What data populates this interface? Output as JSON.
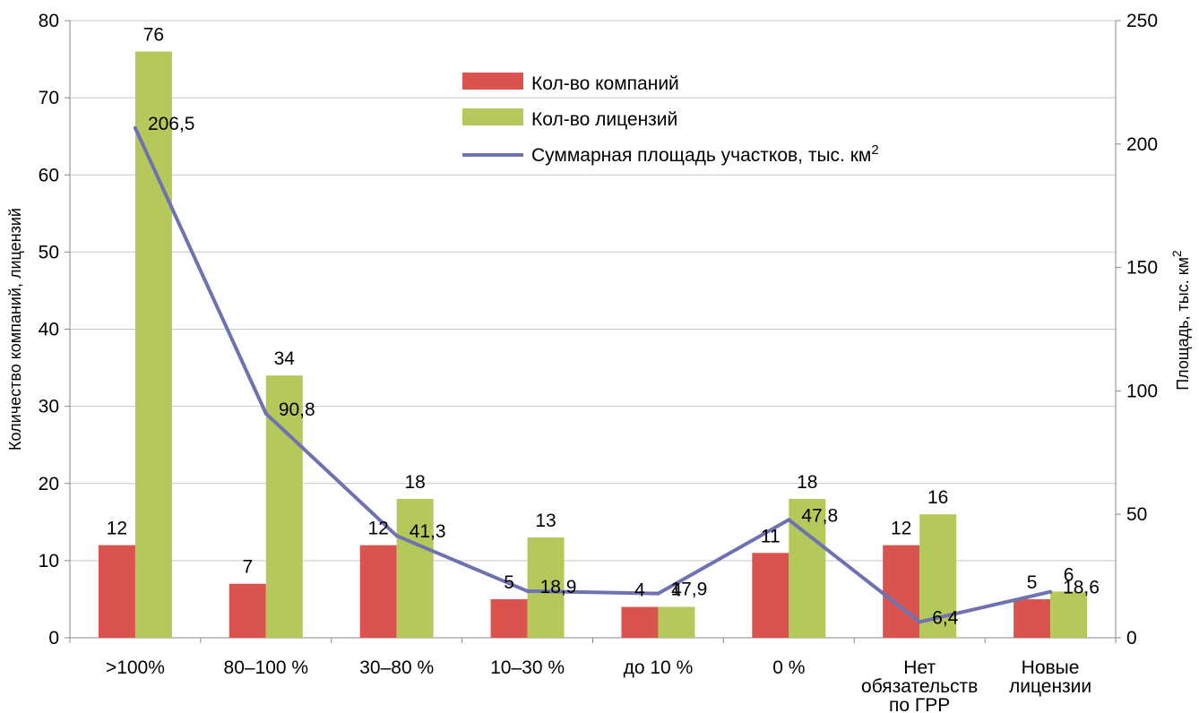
{
  "chart_data": {
    "type": "bar",
    "categories": [
      [
        ">100%"
      ],
      [
        "80–100 %"
      ],
      [
        "30–80 %"
      ],
      [
        "10–30 %"
      ],
      [
        "до 10 %"
      ],
      [
        "0 %"
      ],
      [
        "Нет",
        "обязательств",
        "по ГРР"
      ],
      [
        "Новые",
        "лицензии"
      ]
    ],
    "series": [
      {
        "name": "Кол-во компаний",
        "type": "bar",
        "axis": "left",
        "color": "#d9534f",
        "values": [
          12,
          7,
          12,
          5,
          4,
          11,
          12,
          5
        ]
      },
      {
        "name": "Кол-во лицензий",
        "type": "bar",
        "axis": "left",
        "color": "#b5c95a",
        "values": [
          76,
          34,
          18,
          13,
          4,
          18,
          16,
          6
        ]
      },
      {
        "name": "Суммарная площадь участков, тыс. км",
        "name_sup": "2",
        "type": "line",
        "axis": "right",
        "color": "#6e72b0",
        "values": [
          206.5,
          90.8,
          41.3,
          18.9,
          17.9,
          47.8,
          6.4,
          18.6
        ],
        "labels": [
          "206,5",
          "90,8",
          "41,3",
          "18,9",
          "17,9",
          "47,8",
          "6,4",
          "18,6"
        ]
      }
    ],
    "ylabel_left": "Количество компаний, лицензий",
    "ylabel_right": "Площадь, тыс. км",
    "ylabel_right_sup": "2",
    "ylim_left": [
      0,
      80
    ],
    "yticks_left": [
      0,
      10,
      20,
      30,
      40,
      50,
      60,
      70,
      80
    ],
    "ylim_right": [
      0,
      250
    ],
    "yticks_right": [
      0,
      50,
      100,
      150,
      200,
      250
    ],
    "grid": true,
    "legend_position": "top-center"
  }
}
